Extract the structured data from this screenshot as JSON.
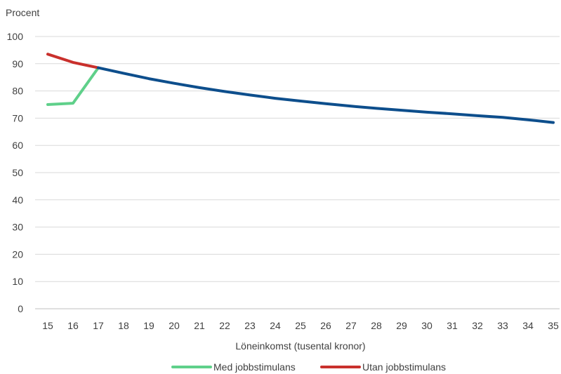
{
  "chart_data": {
    "type": "line",
    "ylabel": "Procent",
    "xlabel": "Löneinkomst (tusental kronor)",
    "ylim": [
      0,
      100
    ],
    "yticks": [
      0,
      10,
      20,
      30,
      40,
      50,
      60,
      70,
      80,
      90,
      100
    ],
    "grid": "horizontal",
    "legend_position": "bottom",
    "x": [
      15,
      16,
      17,
      18,
      19,
      20,
      21,
      22,
      23,
      24,
      25,
      26,
      27,
      28,
      29,
      30,
      31,
      32,
      33,
      34,
      35
    ],
    "series": [
      {
        "name": "Med jobbstimulans",
        "color": "#5fd08a",
        "x": [
          15,
          16,
          17
        ],
        "values": [
          75,
          75.5,
          88.5
        ],
        "in_legend": true
      },
      {
        "name": "Utan jobbstimulans",
        "color": "#c9302c",
        "x": [
          15,
          16,
          17
        ],
        "values": [
          93.5,
          90.5,
          88.5
        ],
        "in_legend": true
      },
      {
        "name": "",
        "color": "#0d4e8c",
        "x": [
          17,
          18,
          19,
          20,
          21,
          22,
          23,
          24,
          25,
          26,
          27,
          28,
          29,
          30,
          31,
          32,
          33,
          34,
          35
        ],
        "values": [
          88.5,
          86.5,
          84.5,
          82.8,
          81.2,
          79.8,
          78.5,
          77.3,
          76.3,
          75.3,
          74.4,
          73.6,
          72.9,
          72.2,
          71.6,
          70.9,
          70.3,
          69.4,
          68.4
        ],
        "in_legend": false
      }
    ]
  }
}
